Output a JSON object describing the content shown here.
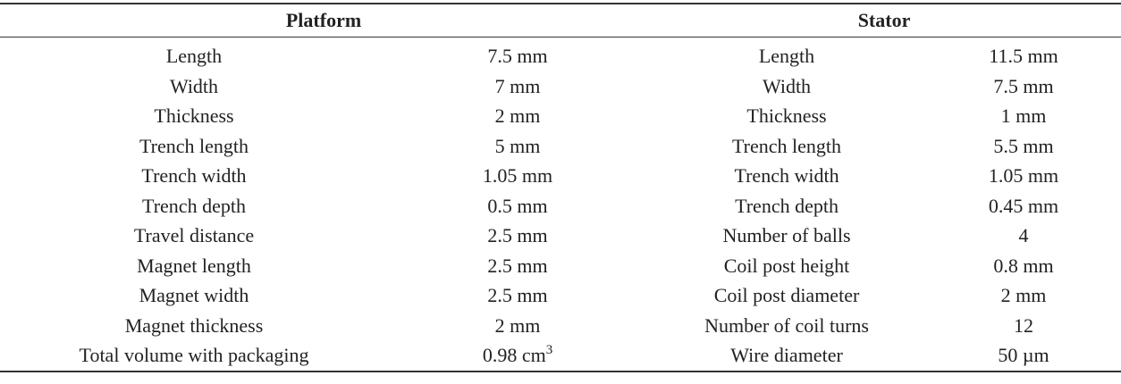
{
  "table": {
    "header": [
      "Platform",
      "Stator"
    ],
    "rows": [
      [
        "Length",
        "7.5 mm",
        "Length",
        "11.5 mm"
      ],
      [
        "Width",
        "7 mm",
        "Width",
        "7.5 mm"
      ],
      [
        "Thickness",
        "2 mm",
        "Thickness",
        "1 mm"
      ],
      [
        "Trench length",
        "5 mm",
        "Trench length",
        "5.5 mm"
      ],
      [
        "Trench width",
        "1.05 mm",
        "Trench width",
        "1.05 mm"
      ],
      [
        "Trench depth",
        "0.5 mm",
        "Trench depth",
        "0.45 mm"
      ],
      [
        "Travel distance",
        "2.5 mm",
        "Number of balls",
        "4"
      ],
      [
        "Magnet length",
        "2.5 mm",
        "Coil post height",
        "0.8 mm"
      ],
      [
        "Magnet width",
        "2.5 mm",
        "Coil post diameter",
        "2 mm"
      ],
      [
        "Magnet thickness",
        "2 mm",
        "Number of coil turns",
        "12"
      ],
      [
        "Total volume with packaging",
        {
          "text": "0.98 cm",
          "sup": "3"
        },
        "Wire diameter",
        "50 µm"
      ]
    ]
  }
}
